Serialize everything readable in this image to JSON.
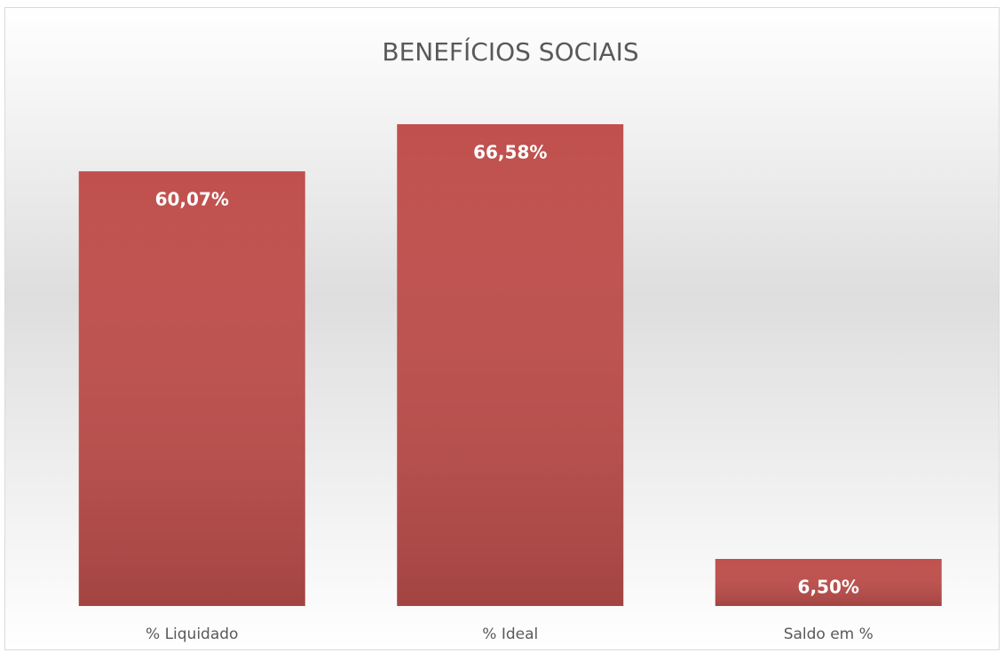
{
  "chart_data": {
    "type": "bar",
    "title": "BENEFÍCIOS SOCIAIS",
    "categories": [
      "% Liquidado",
      "% Ideal",
      "Saldo em %"
    ],
    "values": [
      60.07,
      66.58,
      6.5
    ],
    "value_labels": [
      "60,07%",
      "66,58%",
      "6,50%"
    ],
    "color": "#c0504d"
  }
}
